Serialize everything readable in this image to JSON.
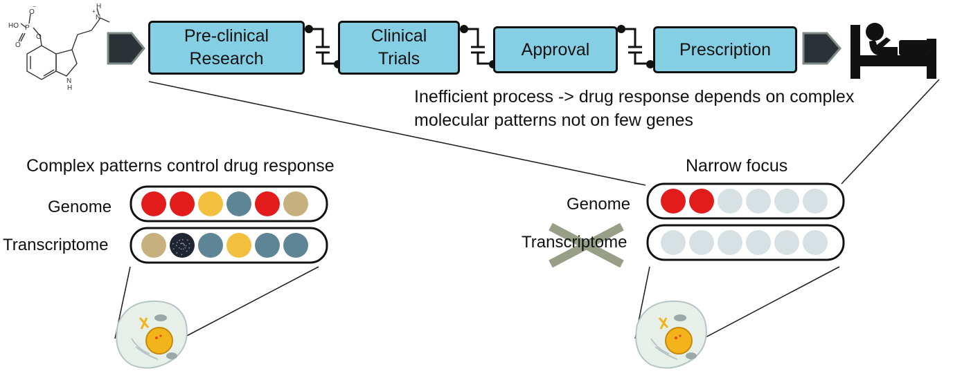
{
  "pipeline": {
    "steps": [
      {
        "label": "Pre-clinical\nResearch"
      },
      {
        "label": "Clinical\nTrials"
      },
      {
        "label": "Approval"
      },
      {
        "label": "Prescription"
      }
    ]
  },
  "note": {
    "line1": "Inefficient process -> drug response depends on complex",
    "line2": "molecular patterns not on few genes"
  },
  "left_panel": {
    "title": "Complex patterns control drug response",
    "genome_label": "Genome",
    "transcriptome_label": "Transcriptome",
    "genome_dots": [
      "#e21b1b",
      "#e21b1b",
      "#f3c03d",
      "#5e8596",
      "#e21b1b",
      "#c6b07e"
    ],
    "transcriptome_dots": [
      "#c6b07e",
      "#1f2533",
      "#5e8596",
      "#f3c03d",
      "#5e8596",
      "#5e8596"
    ]
  },
  "right_panel": {
    "title": "Narrow focus",
    "genome_label": "Genome",
    "transcriptome_label": "Transcriptome",
    "genome_dots": [
      "#e21b1b",
      "#e21b1b",
      "#d7e1e3",
      "#d7e1e3",
      "#d7e1e3",
      "#d7e1e3"
    ],
    "transcriptome_dots": [
      "#d7e1e3",
      "#d7e1e3",
      "#d7e1e3",
      "#d7e1e3",
      "#d7e1e3",
      "#d7e1e3"
    ]
  },
  "molecule": {
    "labels": [
      "O",
      "HO",
      "P",
      "O",
      "O",
      "N",
      "H",
      "N"
    ]
  },
  "colors": {
    "step_fill": "#84cfe3",
    "arrow_fill": "#2b3136",
    "cross": "#8f947a"
  },
  "icons": [
    "molecule-icon",
    "arrow-icon",
    "patient-in-bed-icon",
    "cell-icon",
    "cross-icon"
  ]
}
